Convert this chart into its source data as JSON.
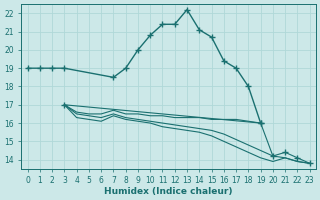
{
  "xlabel": "Humidex (Indice chaleur)",
  "xlim": [
    -0.5,
    23.5
  ],
  "ylim": [
    13.5,
    22.5
  ],
  "yticks": [
    14,
    15,
    16,
    17,
    18,
    19,
    20,
    21,
    22
  ],
  "xticks": [
    0,
    1,
    2,
    3,
    4,
    5,
    6,
    7,
    8,
    9,
    10,
    11,
    12,
    13,
    14,
    15,
    16,
    17,
    18,
    19,
    20,
    21,
    22,
    23
  ],
  "bg_color": "#cce8e8",
  "line_color": "#1a7070",
  "grid_color": "#b0d8d8",
  "lines": [
    {
      "x": [
        0,
        1,
        2,
        3,
        7,
        8,
        9,
        10,
        11,
        12,
        13,
        14,
        15,
        16,
        17,
        18,
        19
      ],
      "y": [
        19,
        19,
        19,
        19,
        18.5,
        19.0,
        20.0,
        20.8,
        21.4,
        21.4,
        22.2,
        21.1,
        20.7,
        19.4,
        19.0,
        18.0,
        16.0
      ],
      "has_markers": true
    },
    {
      "x": [
        3,
        4,
        5,
        6,
        7,
        8,
        9,
        10,
        11,
        12,
        13,
        14,
        15,
        16,
        17,
        18,
        19
      ],
      "y": [
        17.0,
        16.6,
        16.5,
        16.5,
        16.7,
        16.5,
        16.5,
        16.4,
        16.4,
        16.3,
        16.3,
        16.3,
        16.2,
        16.2,
        16.2,
        16.1,
        16.0
      ],
      "has_markers": false
    },
    {
      "x": [
        3,
        4,
        5,
        6,
        7,
        8,
        9,
        10,
        11,
        12,
        13,
        14,
        15,
        16,
        17,
        18,
        19,
        20,
        21,
        22,
        23
      ],
      "y": [
        17.0,
        16.5,
        16.4,
        16.3,
        16.5,
        16.3,
        16.2,
        16.1,
        16.0,
        15.9,
        15.8,
        15.7,
        15.6,
        15.4,
        15.1,
        14.8,
        14.5,
        14.2,
        14.1,
        13.9,
        13.8
      ],
      "has_markers": false
    },
    {
      "x": [
        3,
        4,
        5,
        6,
        7,
        8,
        9,
        10,
        11,
        12,
        13,
        14,
        15,
        16,
        17,
        18,
        19,
        20,
        21,
        22,
        23
      ],
      "y": [
        17.0,
        16.3,
        16.2,
        16.1,
        16.4,
        16.2,
        16.1,
        16.0,
        15.8,
        15.7,
        15.6,
        15.5,
        15.3,
        15.0,
        14.7,
        14.4,
        14.1,
        13.9,
        14.1,
        13.9,
        13.8
      ],
      "has_markers": false
    },
    {
      "x": [
        3,
        19,
        20,
        21,
        22,
        23
      ],
      "y": [
        17.0,
        16.0,
        14.2,
        14.4,
        14.1,
        13.8
      ],
      "has_markers": true
    }
  ]
}
